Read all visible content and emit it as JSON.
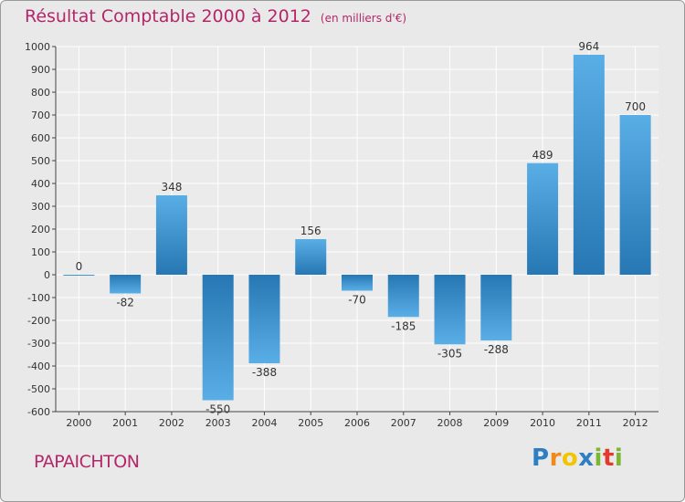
{
  "chart_data": {
    "type": "bar",
    "title": "Résultat Comptable 2000 à 2012",
    "subtitle": "(en milliers d'€)",
    "categories": [
      "2000",
      "2001",
      "2002",
      "2003",
      "2004",
      "2005",
      "2006",
      "2007",
      "2008",
      "2009",
      "2010",
      "2011",
      "2012"
    ],
    "values": [
      0,
      -82,
      348,
      -550,
      -388,
      156,
      -70,
      -185,
      -305,
      -288,
      489,
      964,
      700
    ],
    "ylim": [
      -600,
      1000
    ],
    "yticks": [
      -600,
      -500,
      -400,
      -300,
      -200,
      -100,
      0,
      100,
      200,
      300,
      400,
      500,
      600,
      700,
      800,
      900,
      1000
    ],
    "grid": true,
    "colors": {
      "bar_dark": "#2677b3",
      "bar_light": "#5aaee6",
      "title": "#b3276a"
    }
  },
  "commune": "PAPAICHTON",
  "logo": {
    "letters": [
      "P",
      "r",
      "o",
      "x",
      "i",
      "t",
      "i"
    ],
    "colors": [
      "#2d7fc1",
      "#f08a1c",
      "#f2c500",
      "#2d7fc1",
      "#7cb82f",
      "#e23b2e",
      "#7cb82f"
    ]
  }
}
